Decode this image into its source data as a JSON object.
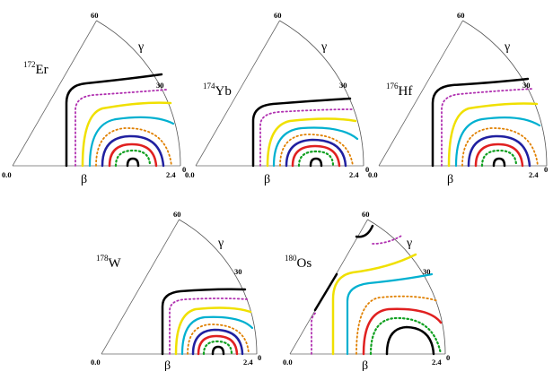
{
  "axes": {
    "beta_label": "β",
    "gamma_label": "γ",
    "origin_label": "0.0",
    "beta_max_label": "2.4",
    "gamma_ticks": [
      "0",
      "30",
      "60"
    ]
  },
  "panels": [
    {
      "id": "er172",
      "mass": "172",
      "element": "Er"
    },
    {
      "id": "yb174",
      "mass": "174",
      "element": "Yb"
    },
    {
      "id": "hf176",
      "mass": "176",
      "element": "Hf"
    },
    {
      "id": "w178",
      "mass": "178",
      "element": "W"
    },
    {
      "id": "os180",
      "mass": "180",
      "element": "Os"
    }
  ],
  "contour_colors": {
    "black": "#000000",
    "magenta": "#b030b0",
    "yellow": "#f0e000",
    "cyan": "#00b0d0",
    "orange": "#e08000",
    "blue": "#2020a0",
    "red": "#e02020",
    "green": "#10a020"
  }
}
